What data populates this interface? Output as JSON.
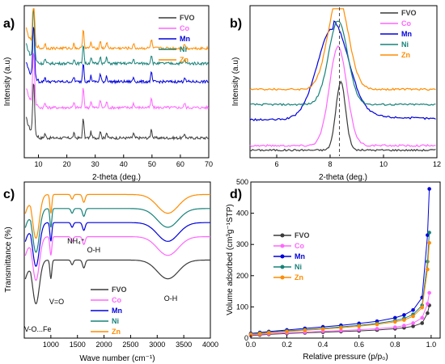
{
  "series_colors": {
    "FVO": "#3a3a3a",
    "Co": "#ff66ff",
    "Mn": "#0000dd",
    "Ni": "#17827a",
    "Zn": "#ff8c00"
  },
  "panels": {
    "a": {
      "letter": "a)"
    },
    "b": {
      "letter": "b)"
    },
    "c": {
      "letter": "c)"
    },
    "d": {
      "letter": "d)"
    }
  },
  "chart_data": [
    {
      "id": "a",
      "type": "line",
      "xlabel": "2-theta (deg.)",
      "ylabel": "Intensity (a.u)",
      "xlim": [
        5,
        70
      ],
      "xticks": [
        10,
        20,
        30,
        40,
        50,
        60,
        70
      ],
      "yticks_shown": false,
      "legend": [
        "FVO",
        "Co",
        "Mn",
        "Ni",
        "Zn"
      ],
      "legend_position": "top-right",
      "offset_baselines": {
        "FVO": 0.13,
        "Co": 0.33,
        "Mn": 0.5,
        "Ni": 0.62,
        "Zn": 0.72
      },
      "peaks": [
        {
          "x": 8.3,
          "h": 0.35
        },
        {
          "x": 12.3,
          "h": 0.03
        },
        {
          "x": 22.5,
          "h": 0.03
        },
        {
          "x": 25.8,
          "h": 0.13
        },
        {
          "x": 28.5,
          "h": 0.04
        },
        {
          "x": 31.8,
          "h": 0.05
        },
        {
          "x": 34.0,
          "h": 0.04
        },
        {
          "x": 43.5,
          "h": 0.03
        },
        {
          "x": 49.8,
          "h": 0.06
        },
        {
          "x": 61.5,
          "h": 0.03
        }
      ]
    },
    {
      "id": "b",
      "type": "line",
      "xlabel": "2-theta (deg.)",
      "ylabel": "Intensity (a.u)",
      "xlim": [
        5,
        12
      ],
      "xticks": [
        6,
        8,
        10,
        12
      ],
      "yticks_shown": false,
      "reference_line_x": 8.35,
      "legend": [
        "FVO",
        "Co",
        "Mn",
        "Ni",
        "Zn"
      ],
      "legend_position": "top-right",
      "curves": [
        {
          "name": "FVO",
          "base": 0.05,
          "center": 8.4,
          "amp": 0.45,
          "width": 0.28
        },
        {
          "name": "Co",
          "base": 0.08,
          "center": 8.3,
          "amp": 0.65,
          "width": 0.5
        },
        {
          "name": "Mn",
          "base": 0.25,
          "center": 8.1,
          "amp": 0.6,
          "width": 0.9
        },
        {
          "name": "Ni",
          "base": 0.35,
          "center": 8.3,
          "amp": 0.55,
          "width": 0.55
        },
        {
          "name": "Zn",
          "base": 0.45,
          "center": 8.3,
          "amp": 0.6,
          "width": 0.6
        }
      ]
    },
    {
      "id": "c",
      "type": "line",
      "xlabel": "Wave number (cm⁻¹)",
      "ylabel": "Transmittance (%)",
      "xlim": [
        500,
        4000
      ],
      "xticks": [
        1000,
        1500,
        2000,
        2500,
        3000,
        3500,
        4000
      ],
      "yticks_shown": false,
      "legend": [
        "FVO",
        "Co",
        "Mn",
        "Ni",
        "Zn"
      ],
      "legend_position": "bottom-center",
      "offsets": {
        "FVO": 0.5,
        "Co": 0.65,
        "Mn": 0.74,
        "Ni": 0.83,
        "Zn": 0.92
      },
      "annotations": [
        {
          "text": "NH₄⁺",
          "x": 1400
        },
        {
          "text": "O-H",
          "x": 1620
        },
        {
          "text": "O-H",
          "x": 3250
        },
        {
          "text": "V=O",
          "x": 1000
        },
        {
          "text": "V-O...Fe",
          "x": 730
        }
      ]
    },
    {
      "id": "d",
      "type": "line",
      "xlabel": "Relative pressure (p/p₀)",
      "ylabel": "Volume adsorbed (cm³g⁻¹STP)",
      "xlim": [
        0.0,
        1.05
      ],
      "ylim": [
        0,
        500
      ],
      "xticks": [
        0.0,
        0.2,
        0.4,
        0.6,
        0.8,
        1.0
      ],
      "yticks": [
        0,
        100,
        200,
        300,
        400,
        500
      ],
      "legend": [
        "FVO",
        "Co",
        "Mn",
        "Ni",
        "Zn"
      ],
      "legend_position": "center-left",
      "series": [
        {
          "name": "FVO",
          "x": [
            0.0,
            0.05,
            0.1,
            0.2,
            0.3,
            0.4,
            0.5,
            0.6,
            0.7,
            0.8,
            0.85,
            0.9,
            0.95,
            0.98,
            0.99
          ],
          "y": [
            8,
            10,
            12,
            15,
            17,
            19,
            21,
            23,
            26,
            30,
            33,
            38,
            48,
            80,
            105
          ]
        },
        {
          "name": "Co",
          "x": [
            0.0,
            0.05,
            0.1,
            0.2,
            0.3,
            0.4,
            0.5,
            0.6,
            0.7,
            0.8,
            0.85,
            0.9,
            0.95,
            0.98,
            0.99
          ],
          "y": [
            10,
            12,
            14,
            17,
            19,
            22,
            24,
            27,
            30,
            35,
            40,
            48,
            65,
            110,
            145
          ]
        },
        {
          "name": "Mn",
          "x": [
            0.0,
            0.05,
            0.1,
            0.2,
            0.3,
            0.4,
            0.5,
            0.6,
            0.7,
            0.8,
            0.85,
            0.9,
            0.95,
            0.98,
            0.99
          ],
          "y": [
            15,
            18,
            21,
            26,
            31,
            36,
            41,
            47,
            54,
            65,
            74,
            90,
            130,
            330,
            478
          ]
        },
        {
          "name": "Ni",
          "x": [
            0.0,
            0.05,
            0.1,
            0.2,
            0.3,
            0.4,
            0.5,
            0.6,
            0.7,
            0.8,
            0.85,
            0.9,
            0.95,
            0.98,
            0.99
          ],
          "y": [
            13,
            16,
            19,
            23,
            27,
            31,
            36,
            41,
            47,
            56,
            63,
            76,
            105,
            245,
            338
          ]
        },
        {
          "name": "Zn",
          "x": [
            0.0,
            0.05,
            0.1,
            0.2,
            0.3,
            0.4,
            0.5,
            0.6,
            0.7,
            0.8,
            0.85,
            0.9,
            0.95,
            0.98,
            0.99
          ],
          "y": [
            12,
            14,
            17,
            21,
            25,
            29,
            33,
            38,
            44,
            52,
            58,
            70,
            98,
            220,
            305
          ]
        }
      ]
    }
  ]
}
